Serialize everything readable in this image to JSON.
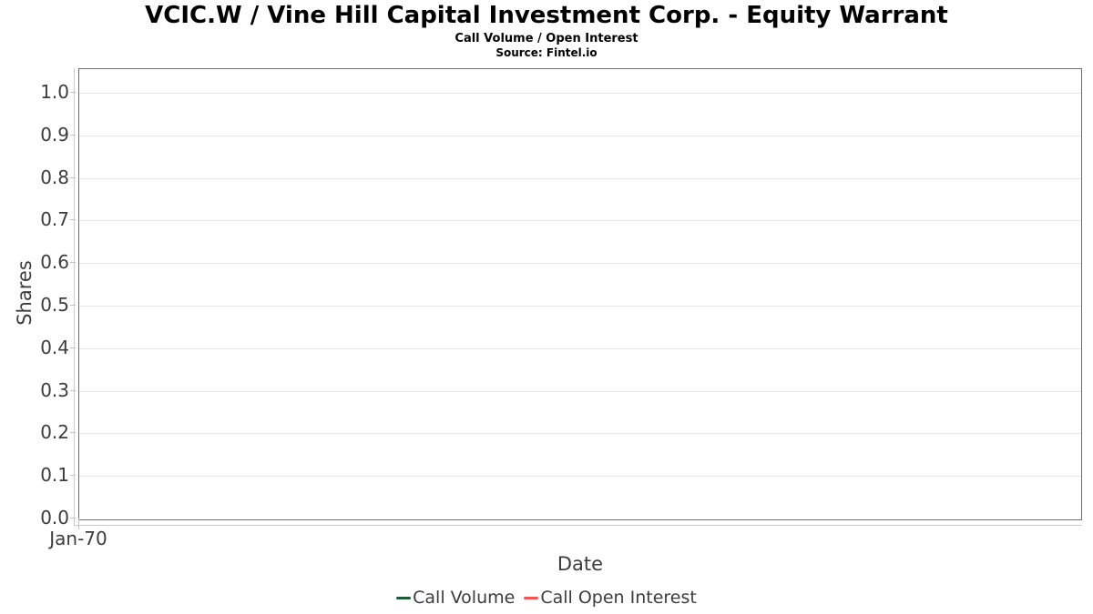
{
  "header": {
    "title": "VCIC.W / Vine Hill Capital Investment Corp. - Equity Warrant",
    "subtitle": "Call Volume / Open Interest",
    "source": "Source: Fintel.io"
  },
  "chart_data": {
    "type": "line",
    "title": "VCIC.W / Vine Hill Capital Investment Corp. - Equity Warrant",
    "subtitle": "Call Volume / Open Interest",
    "source": "Source: Fintel.io",
    "xlabel": "Date",
    "ylabel": "Shares",
    "x_tick_labels": [
      "Jan-70"
    ],
    "y_tick_labels": [
      "1.0",
      "0.9",
      "0.8",
      "0.7",
      "0.6",
      "0.5",
      "0.4",
      "0.3",
      "0.2",
      "0.1",
      "0.0"
    ],
    "ylim": [
      0.0,
      1.05
    ],
    "grid": "horizontal-only",
    "legend_position": "bottom",
    "series": [
      {
        "name": "Call Volume",
        "color": "#1d5b36",
        "x": [],
        "values": []
      },
      {
        "name": "Call Open Interest",
        "color": "#f95454",
        "x": [],
        "values": []
      }
    ]
  },
  "colors": {
    "plot_border": "#6e6e6e",
    "gridline": "#e7e7e7",
    "axis_line": "#cccccc",
    "tick_label": "#3c3c3c",
    "title_text": "#000000"
  }
}
